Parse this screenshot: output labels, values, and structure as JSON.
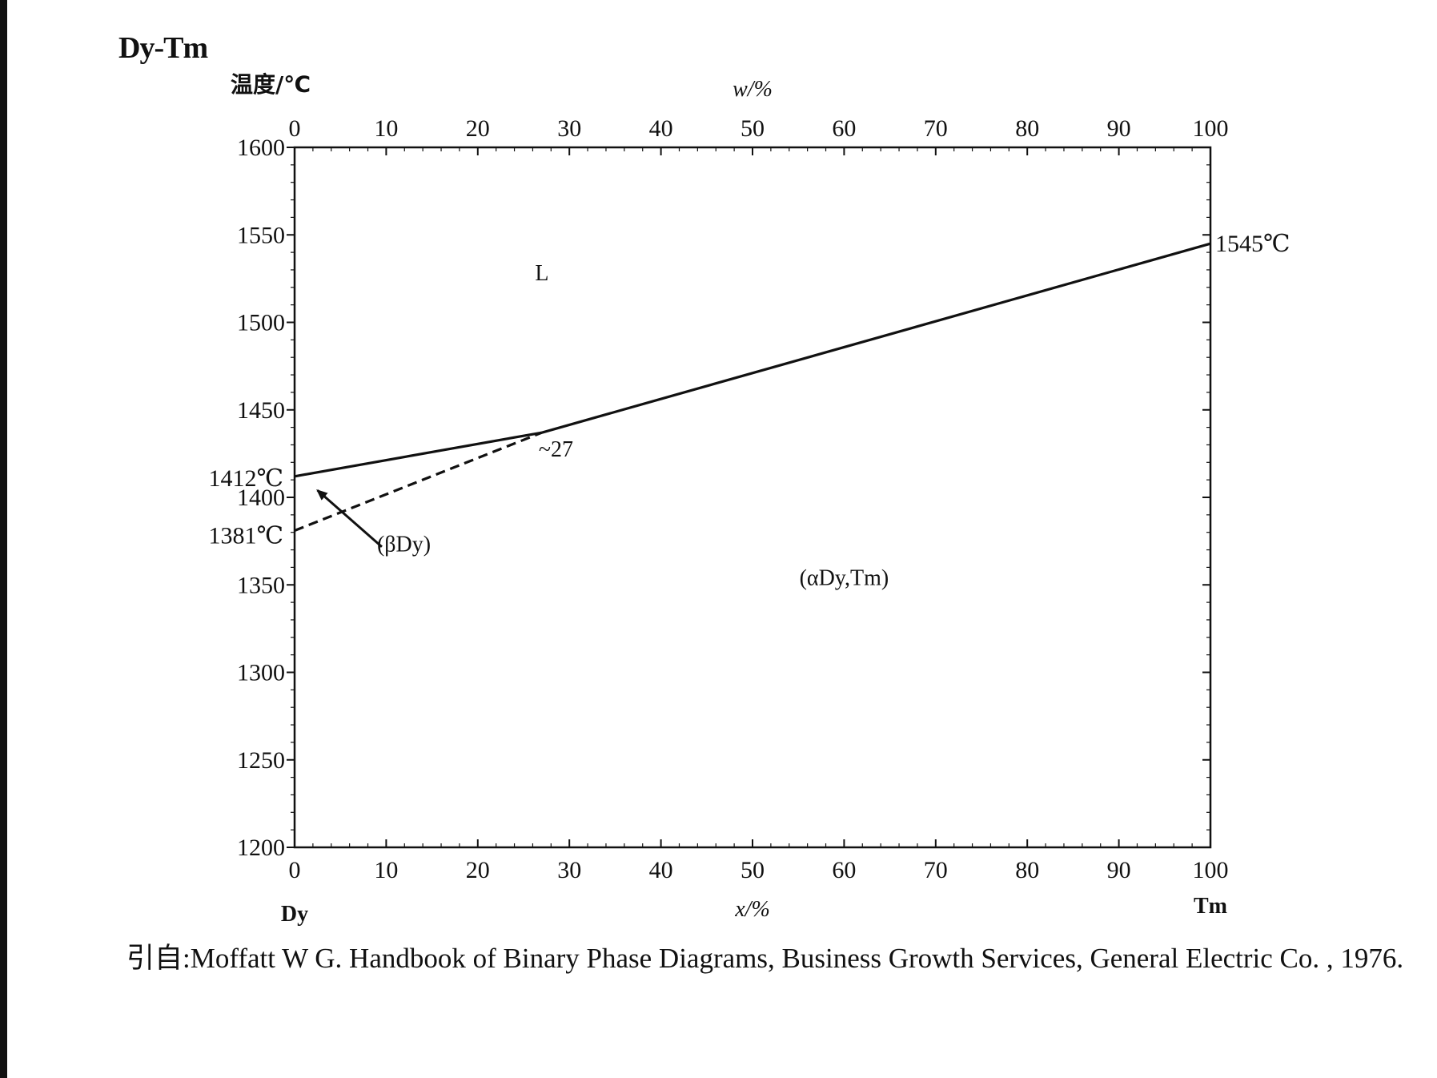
{
  "chart_data": {
    "type": "line",
    "title": "Dy-Tm",
    "ylabel": "温度/℃",
    "xlabel_bottom": "x/%",
    "xlabel_top": "w/%",
    "xlim": [
      0,
      100
    ],
    "ylim": [
      1200,
      1600
    ],
    "x_ticks_bottom": [
      0,
      10,
      20,
      30,
      40,
      50,
      60,
      70,
      80,
      90,
      100
    ],
    "x_ticks_top": [
      0,
      10,
      20,
      30,
      40,
      50,
      60,
      70,
      80,
      90,
      100
    ],
    "y_ticks": [
      1200,
      1250,
      1300,
      1350,
      1400,
      1450,
      1500,
      1550,
      1600
    ],
    "left_element": "Dy",
    "right_element": "Tm",
    "series": [
      {
        "style": "solid",
        "x": [
          0,
          27
        ],
        "y": [
          1412,
          1437
        ]
      },
      {
        "style": "solid",
        "x": [
          27,
          100
        ],
        "y": [
          1437,
          1545
        ]
      },
      {
        "style": "dashed",
        "x": [
          0,
          27
        ],
        "y": [
          1381,
          1437
        ]
      }
    ],
    "annotations": {
      "t_left_high": {
        "text": "1412℃",
        "y": 1412
      },
      "t_left_low": {
        "text": "1381℃",
        "y": 1381
      },
      "t_right": {
        "text": "1545℃",
        "y": 1545
      },
      "junction": {
        "text": "~27",
        "x": 27,
        "y": 1437
      },
      "liquid": {
        "text": "L",
        "x": 27,
        "y": 1524
      },
      "solid": {
        "text": "(αDy,Tm)",
        "x": 60,
        "y": 1350
      },
      "beta": {
        "text": "(βDy)",
        "x": 9,
        "y": 1369,
        "arrow_to": {
          "x": 2.5,
          "y": 1404
        }
      }
    }
  },
  "citation": "引自:Moffatt W G. Handbook of Binary Phase Diagrams, Business Growth Services, General Electric Co. , 1976."
}
